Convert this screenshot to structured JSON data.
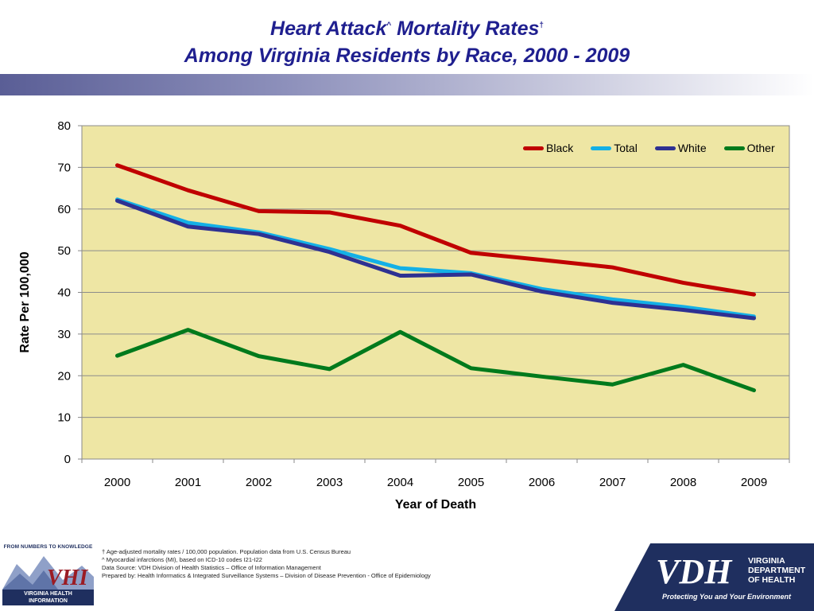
{
  "header": {
    "title_line1_a": "Heart Attack",
    "title_line1_sup1": "^",
    "title_line1_b": " Mortality Rates",
    "title_line1_sup2": "†",
    "title_line2": "Among Virginia Residents by Race, 2000 - 2009"
  },
  "chart_data": {
    "type": "line",
    "title": "",
    "xlabel": "Year of Death",
    "ylabel": "Rate Per 100,000",
    "ylim": [
      0,
      80
    ],
    "yticks": [
      0,
      10,
      20,
      30,
      40,
      50,
      60,
      70,
      80
    ],
    "grid": true,
    "legend_position": "top-right",
    "plot_background": "#eee6a4",
    "categories": [
      "2000",
      "2001",
      "2002",
      "2003",
      "2004",
      "2005",
      "2006",
      "2007",
      "2008",
      "2009"
    ],
    "series": [
      {
        "name": "Black",
        "color": "#c00000",
        "values": [
          70.5,
          64.5,
          59.5,
          59.2,
          56.0,
          49.5,
          47.8,
          46.0,
          42.3,
          39.5
        ]
      },
      {
        "name": "Total",
        "color": "#14b0e6",
        "values": [
          62.3,
          56.7,
          54.4,
          50.4,
          45.8,
          44.6,
          40.8,
          38.3,
          36.5,
          34.2
        ]
      },
      {
        "name": "White",
        "color": "#2e3192",
        "values": [
          62.0,
          55.8,
          54.0,
          49.7,
          44.0,
          44.3,
          40.2,
          37.5,
          35.8,
          33.8
        ]
      },
      {
        "name": "Other",
        "color": "#007a1c",
        "values": [
          24.8,
          31.0,
          24.7,
          21.6,
          30.5,
          21.8,
          19.8,
          17.9,
          22.6,
          16.5
        ]
      }
    ]
  },
  "footer": {
    "notes": [
      "† Age-adjusted mortality rates / 100,000 population.  Population data from U.S. Census Bureau",
      "^  Myocardial infarctions (MI), based on ICD-10 codes I21-I22",
      "Data Source: VDH  Division of Health Statistics – Office of Information Management",
      "Prepared by:  Health Informatics & Integrated Surveillance Systems – Division of Disease Prevention - Office of Epidemiology"
    ],
    "vhi_tagline": "FROM NUMBERS TO KNOWLEDGE",
    "vhi_mark": "VHI",
    "vhi_name_line1": "VIRGINIA HEALTH",
    "vhi_name_line2": "INFORMATION",
    "vdh_mark": "VDH",
    "vdh_line1": "VIRGINIA",
    "vdh_line2": "DEPARTMENT",
    "vdh_line3": "OF HEALTH",
    "vdh_tagline": "Protecting You and Your Environment"
  }
}
